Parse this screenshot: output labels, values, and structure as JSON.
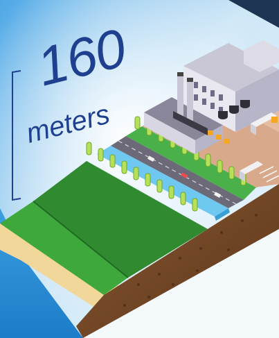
{
  "measure": {
    "value": "160",
    "unit": "meters"
  },
  "colors": {
    "text": "#1f3f8f",
    "sky": "#cfe7f7",
    "sea": "#2a8fd6",
    "sand": "#f1d79a",
    "grass_light": "#3fa83c",
    "grass_dark": "#2a7a2c",
    "road": "#6c6a78",
    "canal": "#6ec8f0",
    "soil": "#7a4b2a",
    "paving": "#d9a98b",
    "building": "#b7b5c8"
  }
}
